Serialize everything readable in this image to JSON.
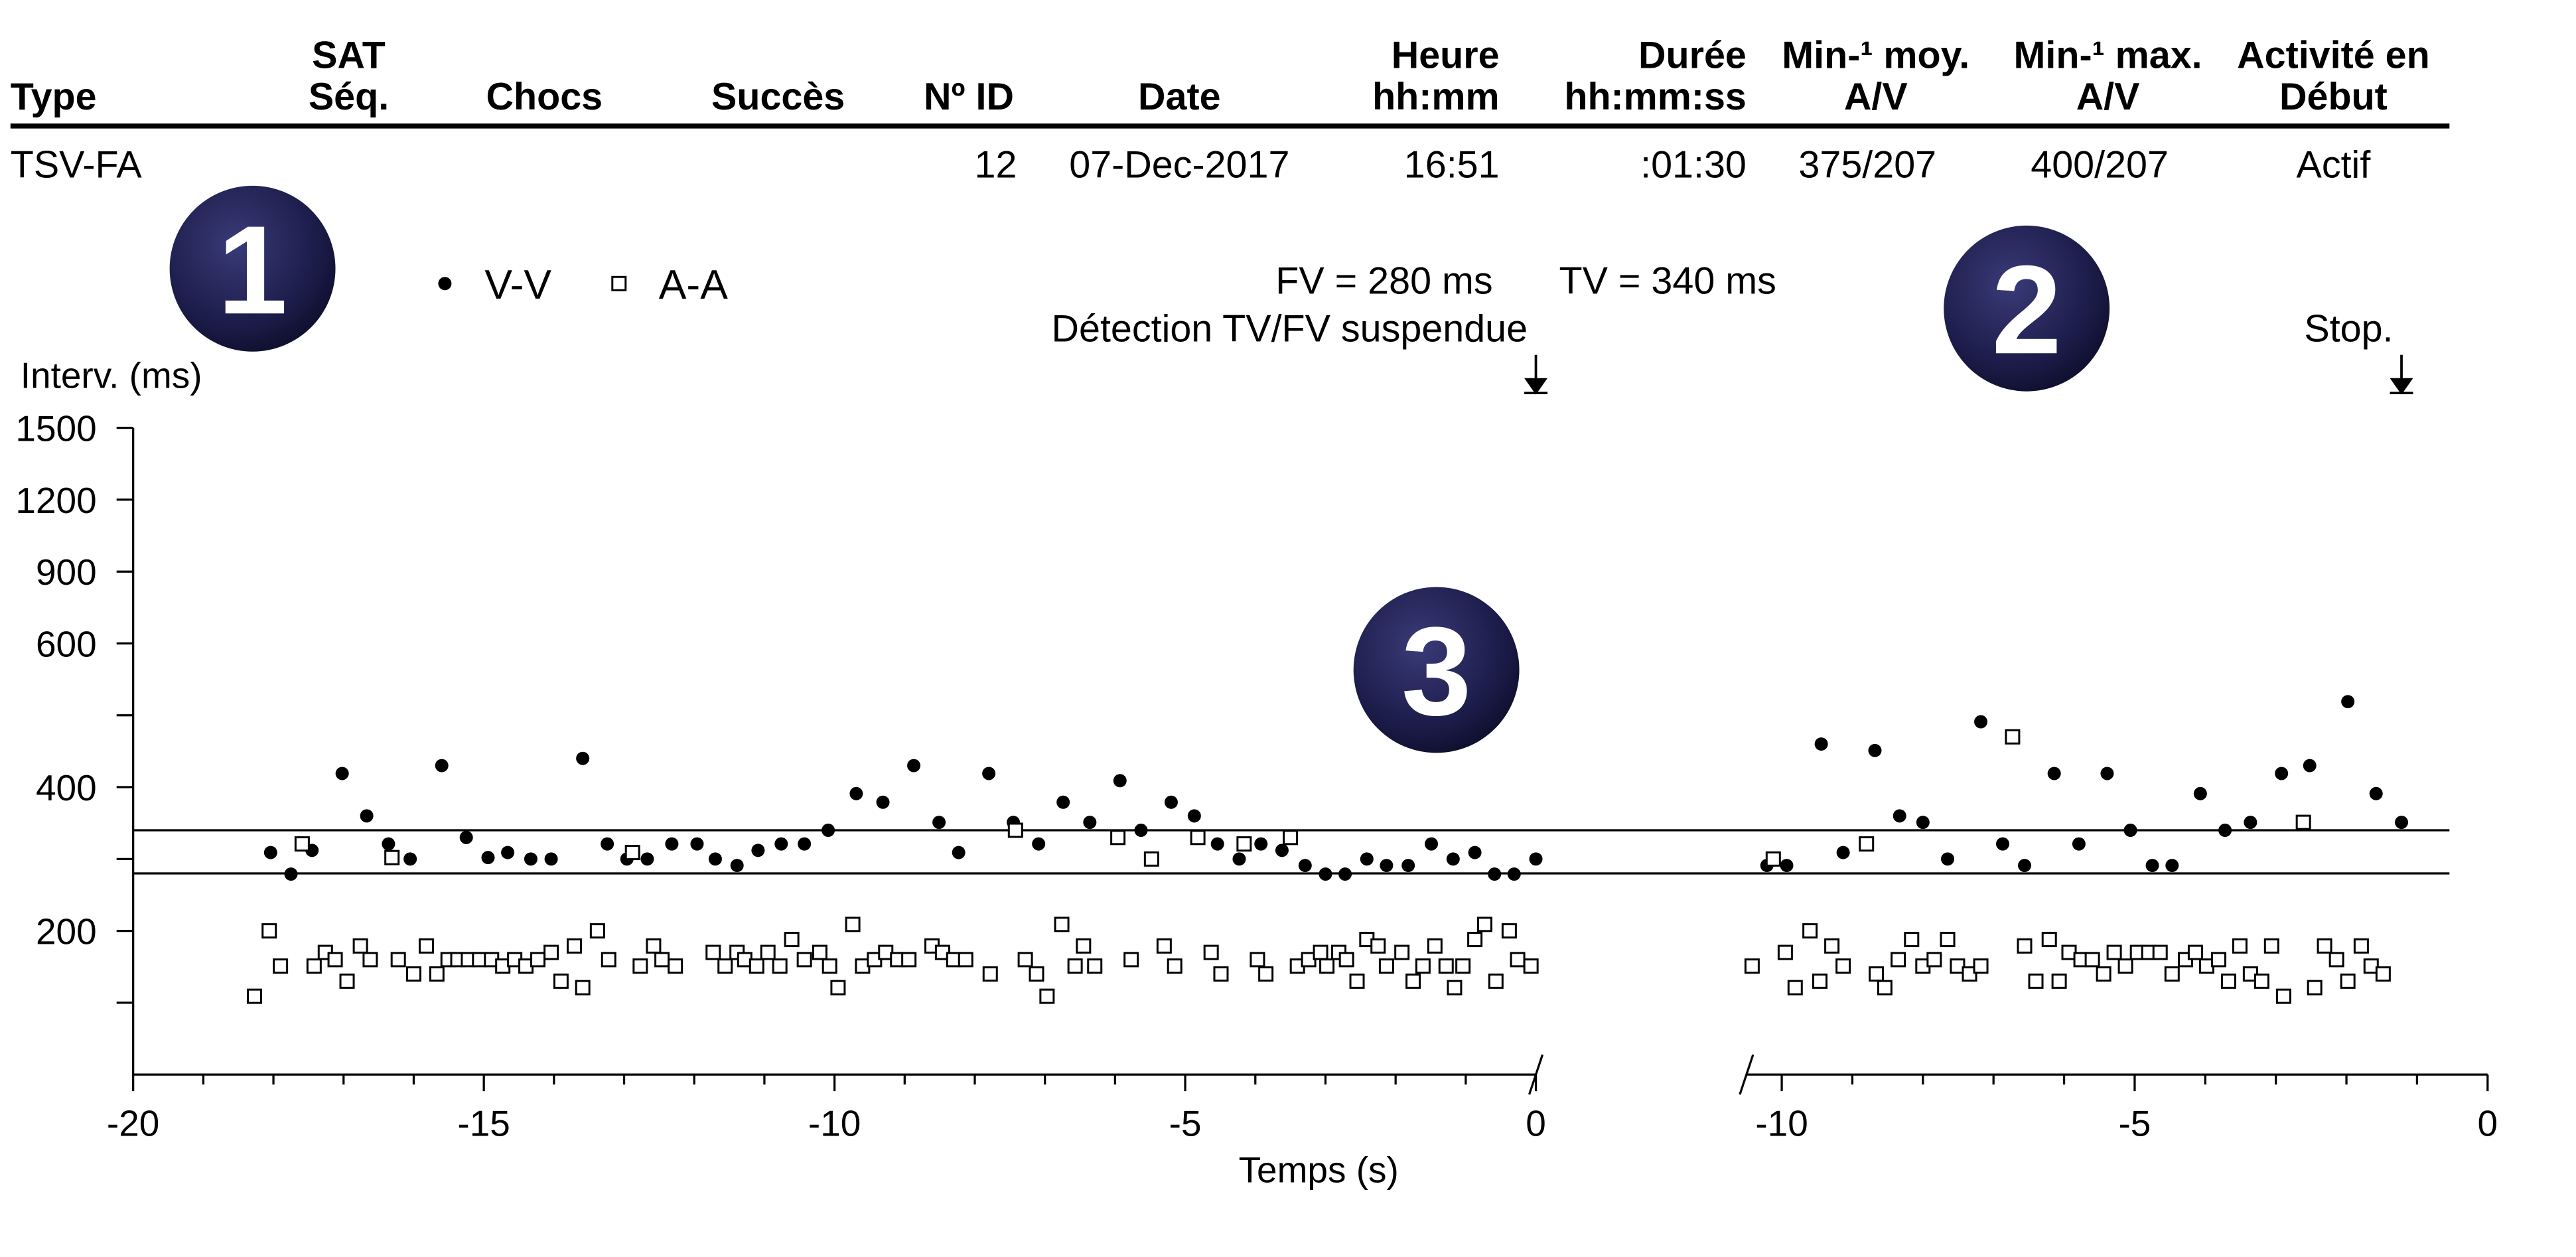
{
  "table": {
    "headers": [
      [
        "Type"
      ],
      [
        "SAT",
        "Séq."
      ],
      [
        "Chocs"
      ],
      [
        "Succès"
      ],
      [
        "Nº ID"
      ],
      [
        "Date"
      ],
      [
        "Heure",
        "hh:mm"
      ],
      [
        "Durée",
        "hh:mm:ss"
      ],
      [
        "Min-¹ moy.",
        "A/V"
      ],
      [
        "Min-¹ max.",
        "A/V"
      ],
      [
        "Activité en",
        "Début"
      ]
    ],
    "rows": [
      [
        "TSV-FA",
        null,
        null,
        null,
        12,
        "07-Dec-2017",
        "16:51",
        ":01:30",
        "375/207",
        "400/207",
        "Actif"
      ]
    ]
  },
  "badges": [
    "1",
    "2",
    "3"
  ],
  "chart_data": {
    "type": "scatter",
    "ylabel": "Interv. (ms)",
    "xlabel": "Temps (s)",
    "yscale": "tick-spaced",
    "ylim": [
      0,
      1500
    ],
    "yticks": [
      200,
      400,
      600,
      900,
      1200,
      1500
    ],
    "minor_yticks": [
      100,
      300,
      500
    ],
    "reference_lines": [
      {
        "label": "FV = 280 ms",
        "value": 280
      },
      {
        "label": "TV = 340 ms",
        "value": 340
      }
    ],
    "annotations": [
      {
        "text": "Détection TV/FV suspendue",
        "panel": 0,
        "x": 0
      },
      {
        "text": "Stop.",
        "panel": 1,
        "x": -1.22
      }
    ],
    "series_styles": [
      {
        "name": "V-V",
        "marker": "dot",
        "color": "#000000"
      },
      {
        "name": "A-A",
        "marker": "square",
        "color": "#000000"
      }
    ],
    "panels": [
      {
        "xlim": [
          -20,
          0
        ],
        "xticks": [
          -20,
          -15,
          -10,
          -5,
          0
        ],
        "minor_xticks": [
          -19,
          -18,
          -17,
          -16,
          -14,
          -13,
          -12,
          -11,
          -9,
          -8,
          -7,
          -6,
          -4,
          -3,
          -2,
          -1
        ],
        "series": [
          {
            "x": [
              -18.04,
              -17.75,
              -17.45,
              -17.02,
              -16.67,
              -16.36,
              -16.05,
              -15.6,
              -15.25,
              -14.94,
              -14.66,
              -14.33,
              -14.04,
              -13.59,
              -13.24,
              -12.96,
              -12.67,
              -12.32,
              -11.96,
              -11.7,
              -11.39,
              -11.09,
              -10.76,
              -10.43,
              -10.09,
              -9.69,
              -9.31,
              -8.87,
              -8.51,
              -8.23,
              -7.8,
              -7.45,
              -7.09,
              -6.74,
              -6.36,
              -5.93,
              -5.63,
              -5.2,
              -4.87,
              -4.54,
              -4.23,
              -3.92,
              -3.62,
              -3.29,
              -3.0,
              -2.72,
              -2.41,
              -2.13,
              -1.82,
              -1.49,
              -1.18,
              -0.87,
              -0.59,
              -0.31,
              0
            ],
            "values": [
              309,
              279,
              312,
              419,
              360,
              321,
              300,
              430,
              330,
              302,
              309,
              300,
              300,
              440,
              321,
              300,
              300,
              321,
              321,
              300,
              291,
              312,
              321,
              321,
              340,
              391,
              379,
              430,
              351,
              309,
              419,
              351,
              321,
              379,
              351,
              409,
              340,
              379,
              360,
              321,
              300,
              321,
              312,
              291,
              279,
              279,
              300,
              291,
              291,
              321,
              300,
              309,
              279,
              279,
              300
            ]
          },
          {
            "x": [
              -18.27,
              -18.06,
              -17.9,
              -17.59,
              -17.42,
              -17.26,
              -17.12,
              -16.95,
              -16.76,
              -16.62,
              -16.31,
              -16.22,
              -16.0,
              -15.82,
              -15.67,
              -15.51,
              -15.37,
              -15.22,
              -15.06,
              -14.89,
              -14.73,
              -14.56,
              -14.4,
              -14.23,
              -14.04,
              -13.9,
              -13.71,
              -13.59,
              -13.38,
              -13.22,
              -12.88,
              -12.77,
              -12.58,
              -12.46,
              -12.27,
              -11.73,
              -11.56,
              -11.39,
              -11.28,
              -11.11,
              -10.95,
              -10.78,
              -10.61,
              -10.43,
              -10.21,
              -10.07,
              -9.95,
              -9.74,
              -9.6,
              -9.43,
              -9.27,
              -9.1,
              -8.94,
              -8.61,
              -8.46,
              -8.3,
              -8.13,
              -7.78,
              -7.42,
              -7.28,
              -7.12,
              -6.97,
              -6.76,
              -6.57,
              -6.45,
              -6.29,
              -5.96,
              -5.77,
              -5.48,
              -5.3,
              -5.15,
              -4.82,
              -4.63,
              -4.49,
              -4.16,
              -3.97,
              -3.85,
              -3.5,
              -3.4,
              -3.24,
              -3.07,
              -2.98,
              -2.81,
              -2.7,
              -2.55,
              -2.41,
              -2.25,
              -2.13,
              -1.91,
              -1.75,
              -1.61,
              -1.44,
              -1.28,
              -1.16,
              -1.04,
              -0.87,
              -0.73,
              -0.57,
              -0.38,
              -0.26,
              -0.07
            ],
            "values": [
              109,
              200,
              151,
              321,
              151,
              170,
              160,
              130,
              179,
              160,
              302,
              160,
              140,
              179,
              140,
              160,
              160,
              160,
              160,
              160,
              151,
              160,
              151,
              160,
              170,
              130,
              179,
              121,
              200,
              160,
              309,
              151,
              179,
              160,
              151,
              170,
              151,
              170,
              160,
              151,
              170,
              151,
              188,
              160,
              170,
              151,
              121,
              209,
              151,
              160,
              170,
              160,
              160,
              179,
              170,
              160,
              160,
              140,
              340,
              160,
              140,
              109,
              209,
              151,
              179,
              151,
              330,
              160,
              300,
              179,
              151,
              330,
              170,
              140,
              321,
              160,
              140,
              330,
              151,
              160,
              170,
              151,
              170,
              160,
              130,
              188,
              179,
              151,
              170,
              130,
              151,
              179,
              151,
              121,
              151,
              188,
              209,
              130,
              200,
              160,
              151
            ]
          }
        ]
      },
      {
        "xlim": [
          -10.5,
          0
        ],
        "xticks": [
          -10,
          -5,
          0
        ],
        "minor_xticks": [
          -9,
          -8,
          -7,
          -6,
          -4,
          -3,
          -2,
          -1
        ],
        "series": [
          {
            "x": [
              -10.21,
              -9.93,
              -9.44,
              -9.13,
              -8.68,
              -8.33,
              -8.0,
              -7.65,
              -7.18,
              -6.87,
              -6.56,
              -6.14,
              -5.79,
              -5.39,
              -5.06,
              -4.75,
              -4.47,
              -4.07,
              -3.72,
              -3.36,
              -2.92,
              -2.52,
              -1.98,
              -1.58,
              -1.22
            ],
            "values": [
              291,
              291,
              460,
              309,
              451,
              360,
              351,
              300,
              491,
              321,
              291,
              419,
              321,
              419,
              340,
              291,
              291,
              391,
              340,
              351,
              419,
              430,
              519,
              391,
              351
            ]
          },
          {
            "x": [
              -10.42,
              -10.12,
              -9.95,
              -9.81,
              -9.6,
              -9.46,
              -9.29,
              -9.13,
              -8.8,
              -8.66,
              -8.54,
              -8.35,
              -8.16,
              -8.0,
              -7.84,
              -7.65,
              -7.51,
              -7.34,
              -7.18,
              -6.73,
              -6.56,
              -6.4,
              -6.21,
              -6.07,
              -5.93,
              -5.76,
              -5.6,
              -5.44,
              -5.29,
              -5.13,
              -4.96,
              -4.8,
              -4.64,
              -4.47,
              -4.28,
              -4.14,
              -3.98,
              -3.81,
              -3.67,
              -3.51,
              -3.36,
              -3.2,
              -3.06,
              -2.89,
              -2.61,
              -2.45,
              -2.31,
              -2.14,
              -1.98,
              -1.79,
              -1.65,
              -1.48
            ],
            "values": [
              151,
              300,
              170,
              121,
              200,
              130,
              179,
              151,
              321,
              140,
              121,
              160,
              188,
              151,
              160,
              188,
              151,
              140,
              151,
              470,
              179,
              130,
              188,
              130,
              170,
              160,
              160,
              140,
              170,
              151,
              170,
              170,
              170,
              140,
              160,
              170,
              151,
              160,
              130,
              179,
              140,
              130,
              179,
              109,
              351,
              121,
              179,
              160,
              130,
              179,
              151,
              140
            ]
          }
        ]
      }
    ]
  }
}
